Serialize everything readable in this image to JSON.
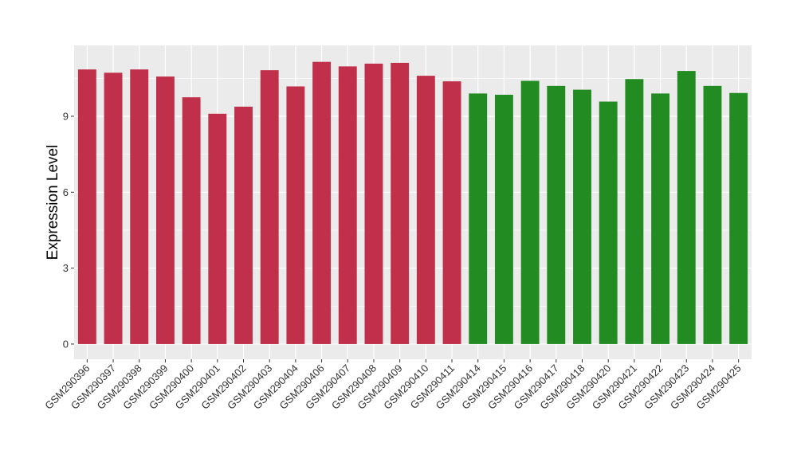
{
  "chart_data": {
    "type": "bar",
    "title": "",
    "xlabel": "",
    "ylabel": "Expression Level",
    "ylim": [
      -0.6,
      11.8
    ],
    "yticks": [
      0,
      3,
      6,
      9
    ],
    "ytick_labels": [
      "0",
      "3",
      "6",
      "9"
    ],
    "grid": true,
    "legend": "none",
    "colors": {
      "group1": "#C0304A",
      "group2": "#228B22",
      "panel": "#EBEBEB",
      "grid": "#FFFFFF"
    },
    "categories": [
      "GSM290396",
      "GSM290397",
      "GSM290398",
      "GSM290399",
      "GSM290400",
      "GSM290401",
      "GSM290402",
      "GSM290403",
      "GSM290404",
      "GSM290406",
      "GSM290407",
      "GSM290408",
      "GSM290409",
      "GSM290410",
      "GSM290411",
      "GSM290414",
      "GSM290415",
      "GSM290416",
      "GSM290417",
      "GSM290418",
      "GSM290420",
      "GSM290421",
      "GSM290422",
      "GSM290423",
      "GSM290424",
      "GSM290425"
    ],
    "values": [
      10.85,
      10.72,
      10.85,
      10.57,
      9.75,
      9.1,
      9.38,
      10.82,
      10.18,
      11.15,
      10.97,
      11.08,
      11.11,
      10.6,
      10.38,
      9.9,
      9.85,
      10.4,
      10.2,
      10.05,
      9.58,
      10.47,
      9.9,
      10.79,
      10.2,
      9.92
    ],
    "bar_groups": [
      0,
      0,
      0,
      0,
      0,
      0,
      0,
      0,
      0,
      0,
      0,
      0,
      0,
      0,
      0,
      1,
      1,
      1,
      1,
      1,
      1,
      1,
      1,
      1,
      1,
      1
    ]
  }
}
